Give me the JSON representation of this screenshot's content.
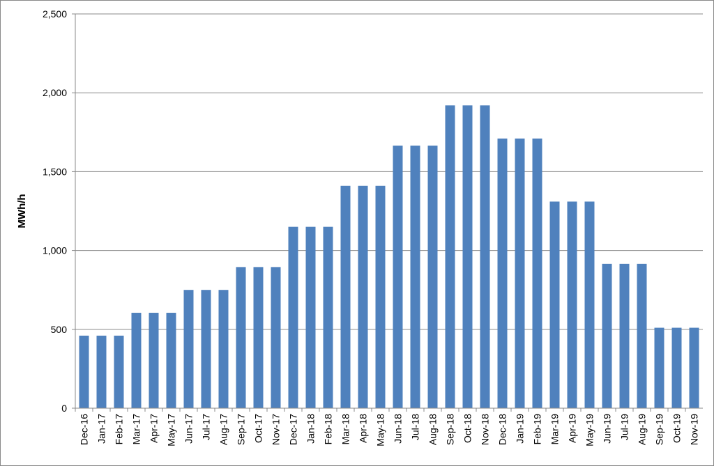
{
  "chart_data": {
    "type": "bar",
    "y_label": "MWh/h",
    "categories": [
      "Dec-16",
      "Jan-17",
      "Feb-17",
      "Mar-17",
      "Apr-17",
      "May-17",
      "Jun-17",
      "Jul-17",
      "Aug-17",
      "Sep-17",
      "Oct-17",
      "Nov-17",
      "Dec-17",
      "Jan-18",
      "Feb-18",
      "Mar-18",
      "Apr-18",
      "May-18",
      "Jun-18",
      "Jul-18",
      "Aug-18",
      "Sep-18",
      "Oct-18",
      "Nov-18",
      "Dec-18",
      "Jan-19",
      "Feb-19",
      "Mar-19",
      "Apr-19",
      "May-19",
      "Jun-19",
      "Jul-19",
      "Aug-19",
      "Sep-19",
      "Oct-19",
      "Nov-19"
    ],
    "values": [
      460,
      460,
      460,
      605,
      605,
      605,
      750,
      750,
      750,
      895,
      895,
      895,
      1150,
      1150,
      1150,
      1410,
      1410,
      1410,
      1665,
      1665,
      1665,
      1920,
      1920,
      1920,
      1710,
      1710,
      1710,
      1310,
      1310,
      1310,
      915,
      915,
      915,
      510,
      510,
      510
    ],
    "color": "#4f81bd",
    "ylim": [
      0,
      2500
    ],
    "yticks": [
      0,
      {
        "value": 500,
        "label": "500"
      },
      {
        "value": 1000,
        "label": "1,000"
      },
      {
        "value": 1500,
        "label": "1,500"
      },
      {
        "value": 2000,
        "label": "2,000"
      },
      {
        "value": 2500,
        "label": "2,500"
      }
    ],
    "grid": true
  }
}
